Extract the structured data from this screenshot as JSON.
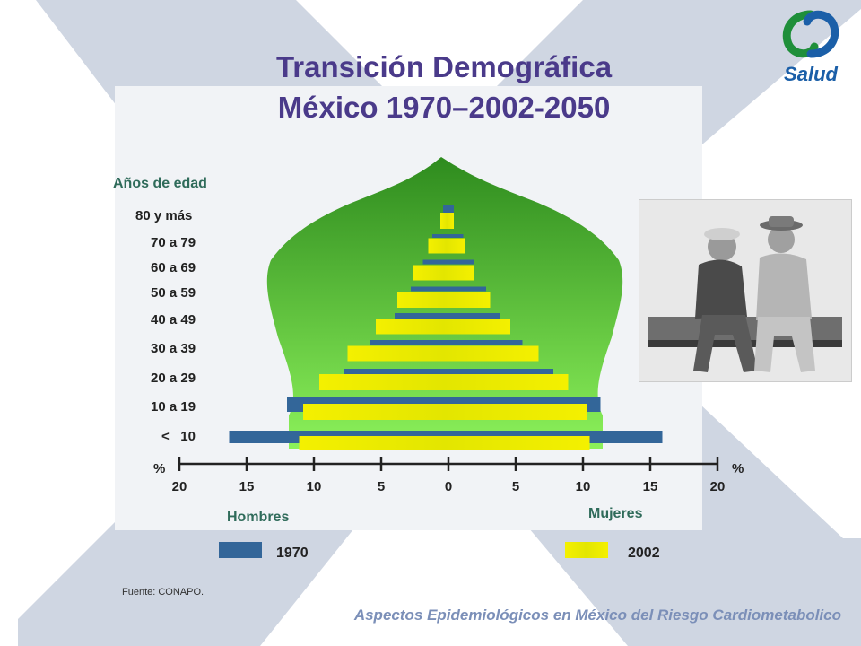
{
  "slide": {
    "title_line1": "Transición Demográfica",
    "title_line2": "México 1970–2002-2050",
    "source": "Fuente: CONAPO.",
    "footer": "Aspectos Epidemiológicos en México del Riesgo Cardiometabolico",
    "logo_text": "Salud"
  },
  "colors": {
    "series_1970": "#336699",
    "series_2002": "#f0ea00",
    "background_x": "#cfd6e2",
    "title": "#4a3a8a",
    "green_labels": "#2f6b5a",
    "pyramid_top": "#2e8b1e",
    "pyramid_bottom": "#8cf15a"
  },
  "chart_data": {
    "type": "bar",
    "orientation": "horizontal",
    "subtype": "population-pyramid",
    "categories": [
      "< 10",
      "10 a 19",
      "20 a 29",
      "30 a 39",
      "40 a 49",
      "50 a 59",
      "60 a 69",
      "70 a 79",
      "80 y más"
    ],
    "series": [
      {
        "name": "1970",
        "hombres": [
          16.3,
          12.0,
          7.8,
          5.8,
          4.0,
          2.8,
          1.9,
          1.2,
          0.4
        ],
        "mujeres": [
          15.9,
          11.3,
          7.8,
          5.5,
          3.8,
          2.8,
          1.9,
          1.1,
          0.4
        ]
      },
      {
        "name": "2002",
        "hombres": [
          11.1,
          10.8,
          9.6,
          7.5,
          5.4,
          3.8,
          2.6,
          1.5,
          0.6
        ],
        "mujeres": [
          10.5,
          10.3,
          8.9,
          6.7,
          4.6,
          3.1,
          1.9,
          1.2,
          0.4
        ]
      }
    ],
    "y_title": "Años de edad",
    "x_ticks": [
      "20",
      "15",
      "10",
      "5",
      "0",
      "5",
      "10",
      "15",
      "20"
    ],
    "x_unit_left": "%",
    "x_unit_right": "%",
    "xlim": [
      -20,
      20
    ],
    "left_label": "Hombres",
    "right_label": "Mujeres",
    "legend": [
      "1970",
      "2002"
    ],
    "legend_position": "bottom"
  }
}
